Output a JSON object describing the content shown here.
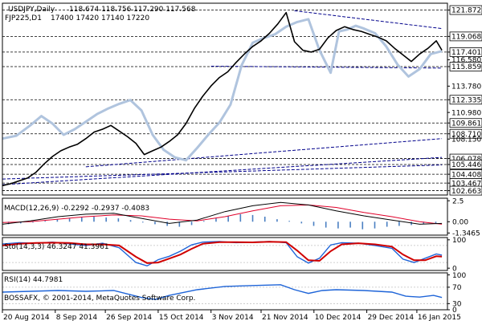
{
  "chart_data": {
    "type": "line",
    "main": {
      "header": {
        "symbol": "USDJPY,Daily",
        "ohlc": "118.674 118.756 117.290 117.568",
        "secondary_symbol": "FJP225,D1",
        "secondary_ohlc": "17400 17420 17140 17220"
      },
      "ylim": [
        102.2,
        122.6
      ],
      "price_labels": [
        {
          "value": 121.872,
          "text": "121.872",
          "style": "dashed",
          "highlight": false
        },
        {
          "value": 119.068,
          "text": "119.068",
          "style": "dashed",
          "highlight": false
        },
        {
          "value": 117.401,
          "text": "117.401",
          "style": "dashed",
          "highlight": false
        },
        {
          "value": 116.58,
          "text": "116.580",
          "style": "none",
          "highlight": false
        },
        {
          "value": 115.859,
          "text": "115.859",
          "style": "dashed",
          "highlight": false
        },
        {
          "value": 113.78,
          "text": "113.780",
          "style": "none",
          "highlight": false
        },
        {
          "value": 112.335,
          "text": "112.335",
          "style": "dashed",
          "highlight": false
        },
        {
          "value": 110.98,
          "text": "110.980",
          "style": "none",
          "highlight": false
        },
        {
          "value": 109.861,
          "text": "109.861",
          "style": "dashed",
          "highlight": false
        },
        {
          "value": 108.71,
          "text": "108.710",
          "style": "dashed",
          "highlight": false
        },
        {
          "value": 108.15,
          "text": "108.150",
          "style": "none",
          "highlight": false
        },
        {
          "value": 106.078,
          "text": "106.078",
          "style": "dashed",
          "highlight": false
        },
        {
          "value": 105.446,
          "text": "105.446",
          "style": "dashed",
          "highlight": false
        },
        {
          "value": 104.408,
          "text": "104.408",
          "style": "dashed",
          "highlight": false
        },
        {
          "value": 103.467,
          "text": "103.467",
          "style": "dashed",
          "highlight": false
        },
        {
          "value": 102.663,
          "text": "102.663",
          "style": "dashed",
          "highlight": false
        }
      ],
      "price_series": [
        [
          0,
          103.2
        ],
        [
          3,
          103.4
        ],
        [
          6,
          103.7
        ],
        [
          9,
          104.0
        ],
        [
          12,
          104.6
        ],
        [
          15,
          105.5
        ],
        [
          18,
          106.3
        ],
        [
          21,
          106.9
        ],
        [
          24,
          107.3
        ],
        [
          27,
          107.6
        ],
        [
          30,
          108.2
        ],
        [
          33,
          108.9
        ],
        [
          36,
          109.2
        ],
        [
          39,
          109.6
        ],
        [
          42,
          109.0
        ],
        [
          45,
          108.4
        ],
        [
          48,
          107.7
        ],
        [
          51,
          106.5
        ],
        [
          54,
          106.9
        ],
        [
          57,
          107.3
        ],
        [
          60,
          107.9
        ],
        [
          63,
          108.6
        ],
        [
          66,
          109.8
        ],
        [
          69,
          111.4
        ],
        [
          72,
          112.7
        ],
        [
          75,
          113.8
        ],
        [
          78,
          114.7
        ],
        [
          81,
          115.3
        ],
        [
          84,
          116.3
        ],
        [
          87,
          117.2
        ],
        [
          90,
          118.0
        ],
        [
          93,
          118.6
        ],
        [
          96,
          119.4
        ],
        [
          99,
          120.4
        ],
        [
          102,
          121.6
        ],
        [
          105,
          118.5
        ],
        [
          108,
          117.6
        ],
        [
          111,
          117.4
        ],
        [
          114,
          117.7
        ],
        [
          117,
          118.9
        ],
        [
          120,
          119.7
        ],
        [
          123,
          120.1
        ],
        [
          126,
          119.8
        ],
        [
          129,
          119.6
        ],
        [
          132,
          119.3
        ],
        [
          135,
          119.0
        ],
        [
          138,
          118.6
        ],
        [
          141,
          117.8
        ],
        [
          144,
          117.1
        ],
        [
          147,
          116.4
        ],
        [
          150,
          117.2
        ],
        [
          153,
          117.8
        ],
        [
          156,
          118.6
        ],
        [
          158,
          117.6
        ]
      ],
      "secondary_series": [
        [
          0,
          108.2
        ],
        [
          5,
          108.5
        ],
        [
          10,
          109.6
        ],
        [
          14,
          110.6
        ],
        [
          18,
          109.8
        ],
        [
          22,
          108.6
        ],
        [
          26,
          109.2
        ],
        [
          30,
          110.0
        ],
        [
          34,
          110.8
        ],
        [
          38,
          111.4
        ],
        [
          42,
          111.9
        ],
        [
          46,
          112.3
        ],
        [
          50,
          111.2
        ],
        [
          54,
          108.6
        ],
        [
          58,
          107.0
        ],
        [
          62,
          106.2
        ],
        [
          66,
          105.9
        ],
        [
          70,
          107.2
        ],
        [
          74,
          108.6
        ],
        [
          78,
          109.9
        ],
        [
          82,
          111.8
        ],
        [
          86,
          116.0
        ],
        [
          90,
          118.4
        ],
        [
          94,
          118.9
        ],
        [
          98,
          119.3
        ],
        [
          102,
          120.1
        ],
        [
          106,
          120.6
        ],
        [
          110,
          120.9
        ],
        [
          114,
          117.6
        ],
        [
          118,
          115.2
        ],
        [
          121,
          119.6
        ],
        [
          124,
          119.8
        ],
        [
          127,
          120.2
        ],
        [
          130,
          119.9
        ],
        [
          134,
          119.4
        ],
        [
          138,
          118.0
        ],
        [
          142,
          116.1
        ],
        [
          146,
          114.8
        ],
        [
          150,
          115.6
        ],
        [
          154,
          117.2
        ],
        [
          158,
          117.5
        ]
      ],
      "channel_lines": [
        {
          "from": [
            0,
            103.3
          ],
          "to": [
            158,
            106.2
          ]
        },
        {
          "from": [
            0,
            103.9
          ],
          "to": [
            158,
            105.4
          ]
        },
        {
          "from": [
            30,
            105.2
          ],
          "to": [
            158,
            108.2
          ]
        },
        {
          "from": [
            75,
            115.9
          ],
          "to": [
            158,
            115.7
          ]
        },
        {
          "from": [
            105,
            121.8
          ],
          "to": [
            158,
            119.9
          ]
        }
      ]
    },
    "macd": {
      "label": "MACD(12,26,9) -0.2292 -0.2937 -0.4083",
      "ylim": [
        -1.6,
        2.8
      ],
      "tick_labels": [
        {
          "value": 2.5,
          "text": "2.5"
        },
        {
          "value": 0.0,
          "text": "0.00"
        },
        {
          "value": -1.3465,
          "text": "-1.3465"
        }
      ],
      "main_line": [
        [
          0,
          -0.3
        ],
        [
          10,
          0.1
        ],
        [
          20,
          0.6
        ],
        [
          30,
          0.9
        ],
        [
          40,
          1.0
        ],
        [
          50,
          0.4
        ],
        [
          60,
          -0.2
        ],
        [
          70,
          0.2
        ],
        [
          80,
          1.2
        ],
        [
          90,
          1.9
        ],
        [
          100,
          2.3
        ],
        [
          110,
          2.0
        ],
        [
          120,
          1.3
        ],
        [
          130,
          0.7
        ],
        [
          140,
          0.2
        ],
        [
          150,
          -0.3
        ],
        [
          158,
          -0.2
        ]
      ],
      "signal_line": [
        [
          0,
          -0.1
        ],
        [
          10,
          0.0
        ],
        [
          20,
          0.3
        ],
        [
          30,
          0.6
        ],
        [
          40,
          0.8
        ],
        [
          50,
          0.7
        ],
        [
          60,
          0.3
        ],
        [
          70,
          0.1
        ],
        [
          80,
          0.6
        ],
        [
          90,
          1.3
        ],
        [
          100,
          1.9
        ],
        [
          110,
          2.0
        ],
        [
          120,
          1.7
        ],
        [
          130,
          1.1
        ],
        [
          140,
          0.6
        ],
        [
          150,
          0.0
        ],
        [
          158,
          -0.3
        ]
      ],
      "histogram": [
        -0.3,
        -0.2,
        -0.1,
        0.1,
        0.3,
        0.4,
        0.5,
        0.6,
        0.5,
        0.4,
        0.2,
        -0.1,
        -0.3,
        -0.5,
        -0.6,
        -0.4,
        0.1,
        0.4,
        0.7,
        0.9,
        0.8,
        0.6,
        0.3,
        0.1,
        -0.2,
        -0.5,
        -0.7,
        -0.8,
        -0.7,
        -0.9,
        -0.8,
        -0.6,
        -0.5,
        -0.4,
        -0.3,
        -0.2
      ]
    },
    "stochastic": {
      "label": "Sto(14,3,3) 46.3247 41.3961",
      "ylim": [
        -8,
        108
      ],
      "tick_labels": [
        {
          "value": 100,
          "text": "100"
        },
        {
          "value": 0,
          "text": "0"
        }
      ],
      "levels": [
        80,
        20
      ],
      "main_line": [
        [
          0,
          85
        ],
        [
          6,
          90
        ],
        [
          12,
          88
        ],
        [
          18,
          92
        ],
        [
          24,
          86
        ],
        [
          30,
          80
        ],
        [
          36,
          88
        ],
        [
          42,
          72
        ],
        [
          48,
          20
        ],
        [
          52,
          8
        ],
        [
          56,
          30
        ],
        [
          60,
          42
        ],
        [
          64,
          60
        ],
        [
          68,
          82
        ],
        [
          72,
          92
        ],
        [
          78,
          94
        ],
        [
          84,
          90
        ],
        [
          90,
          92
        ],
        [
          96,
          94
        ],
        [
          102,
          90
        ],
        [
          106,
          40
        ],
        [
          110,
          18
        ],
        [
          114,
          35
        ],
        [
          118,
          82
        ],
        [
          122,
          90
        ],
        [
          128,
          88
        ],
        [
          134,
          80
        ],
        [
          140,
          70
        ],
        [
          144,
          32
        ],
        [
          148,
          20
        ],
        [
          152,
          35
        ],
        [
          156,
          50
        ],
        [
          158,
          46
        ]
      ],
      "signal_line": [
        [
          0,
          80
        ],
        [
          6,
          86
        ],
        [
          12,
          89
        ],
        [
          18,
          90
        ],
        [
          24,
          89
        ],
        [
          30,
          84
        ],
        [
          36,
          84
        ],
        [
          42,
          80
        ],
        [
          48,
          40
        ],
        [
          52,
          18
        ],
        [
          56,
          20
        ],
        [
          60,
          34
        ],
        [
          64,
          48
        ],
        [
          68,
          68
        ],
        [
          72,
          86
        ],
        [
          78,
          92
        ],
        [
          84,
          92
        ],
        [
          90,
          91
        ],
        [
          96,
          93
        ],
        [
          102,
          92
        ],
        [
          106,
          62
        ],
        [
          110,
          28
        ],
        [
          114,
          26
        ],
        [
          118,
          60
        ],
        [
          122,
          84
        ],
        [
          128,
          88
        ],
        [
          134,
          84
        ],
        [
          140,
          76
        ],
        [
          144,
          48
        ],
        [
          148,
          28
        ],
        [
          152,
          28
        ],
        [
          156,
          42
        ],
        [
          158,
          41
        ]
      ]
    },
    "rsi": {
      "label": "RSI(14) 44.7981",
      "ylim": [
        15,
        105
      ],
      "tick_labels": [
        {
          "value": 100,
          "text": "100"
        },
        {
          "value": 70,
          "text": "70"
        },
        {
          "value": 30,
          "text": "30"
        },
        {
          "value": 0,
          "text": "0"
        }
      ],
      "levels": [
        70,
        30
      ],
      "line": [
        [
          0,
          58
        ],
        [
          10,
          60
        ],
        [
          20,
          62
        ],
        [
          30,
          60
        ],
        [
          40,
          62
        ],
        [
          50,
          45
        ],
        [
          55,
          40
        ],
        [
          60,
          50
        ],
        [
          70,
          64
        ],
        [
          80,
          72
        ],
        [
          90,
          74
        ],
        [
          100,
          76
        ],
        [
          105,
          64
        ],
        [
          110,
          55
        ],
        [
          115,
          62
        ],
        [
          120,
          64
        ],
        [
          130,
          62
        ],
        [
          140,
          58
        ],
        [
          145,
          48
        ],
        [
          150,
          46
        ],
        [
          155,
          50
        ],
        [
          158,
          45
        ]
      ]
    },
    "x_axis": {
      "min": 0,
      "max": 160,
      "ticks": [
        {
          "x": 0,
          "label": "20 Aug 2014"
        },
        {
          "x": 19,
          "label": "8 Sep 2014"
        },
        {
          "x": 37,
          "label": "26 Sep 2014"
        },
        {
          "x": 56,
          "label": "15 Oct 2014"
        },
        {
          "x": 75,
          "label": "3 Nov 2014"
        },
        {
          "x": 93,
          "label": "21 Nov 2014"
        },
        {
          "x": 112,
          "label": "10 Dec 2014"
        },
        {
          "x": 131,
          "label": "29 Dec 2014"
        },
        {
          "x": 149,
          "label": "16 Jan 2015"
        }
      ]
    },
    "copyright": "BOSSAFX, © 2001-2014, MetaQuotes Software Corp.",
    "colors": {
      "price": "#000000",
      "secondary": "#b0c4de",
      "channel": "#00008b",
      "grid": "#000000",
      "macd_main": "#000000",
      "macd_signal": "#e0002a",
      "macd_hist": "#4a7fc2",
      "stoch_main": "#1e64d8",
      "stoch_signal": "#d00000",
      "rsi": "#1e64d8",
      "level": "#c0c0c0",
      "label_bg": "#ffffff"
    }
  }
}
